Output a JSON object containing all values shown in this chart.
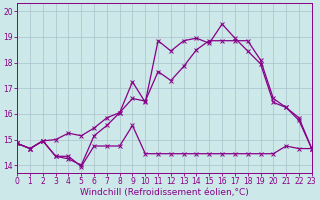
{
  "xlabel": "Windchill (Refroidissement éolien,°C)",
  "background_color": "#cce8e8",
  "grid_color": "#aac0cc",
  "line_color": "#880088",
  "x_ticks": [
    0,
    1,
    2,
    3,
    4,
    5,
    6,
    7,
    8,
    9,
    10,
    11,
    12,
    13,
    14,
    15,
    16,
    17,
    18,
    19,
    20,
    21,
    22,
    23
  ],
  "y_ticks": [
    14,
    15,
    16,
    17,
    18,
    19,
    20
  ],
  "xlim": [
    0,
    23
  ],
  "ylim": [
    13.7,
    20.3
  ],
  "line1_x": [
    0,
    1,
    2,
    3,
    4,
    5,
    6,
    7,
    8,
    9,
    10,
    11,
    12,
    13,
    14,
    15,
    16,
    17,
    18,
    19,
    20,
    21,
    22,
    23
  ],
  "line1_y": [
    14.85,
    14.65,
    14.95,
    14.35,
    14.35,
    13.95,
    14.75,
    14.75,
    14.75,
    15.55,
    14.45,
    14.45,
    14.45,
    14.45,
    14.45,
    14.45,
    14.45,
    14.45,
    14.45,
    14.45,
    14.45,
    14.75,
    14.65,
    14.65
  ],
  "line2_x": [
    0,
    1,
    2,
    3,
    4,
    5,
    6,
    7,
    8,
    9,
    10,
    11,
    12,
    13,
    14,
    15,
    16,
    17,
    18,
    19,
    20,
    21,
    22,
    23
  ],
  "line2_y": [
    14.85,
    14.65,
    14.95,
    15.0,
    15.25,
    15.15,
    15.45,
    15.85,
    16.05,
    16.6,
    16.5,
    17.65,
    17.3,
    17.85,
    18.5,
    18.85,
    18.85,
    18.85,
    18.85,
    18.1,
    16.6,
    16.25,
    15.85,
    14.65
  ],
  "line3_x": [
    0,
    1,
    2,
    3,
    4,
    5,
    6,
    7,
    8,
    9,
    10,
    11,
    12,
    13,
    14,
    15,
    16,
    17,
    18,
    19,
    20,
    21,
    22,
    23
  ],
  "line3_y": [
    14.85,
    14.65,
    14.95,
    14.35,
    14.25,
    14.0,
    15.15,
    15.55,
    16.05,
    17.25,
    16.45,
    18.85,
    18.45,
    18.85,
    18.95,
    18.75,
    19.5,
    18.95,
    18.45,
    17.95,
    16.45,
    16.25,
    15.75,
    14.65
  ],
  "marker": "x",
  "markersize": 2.5,
  "linewidth": 0.9,
  "tick_fontsize": 5.5,
  "label_fontsize": 6.5
}
